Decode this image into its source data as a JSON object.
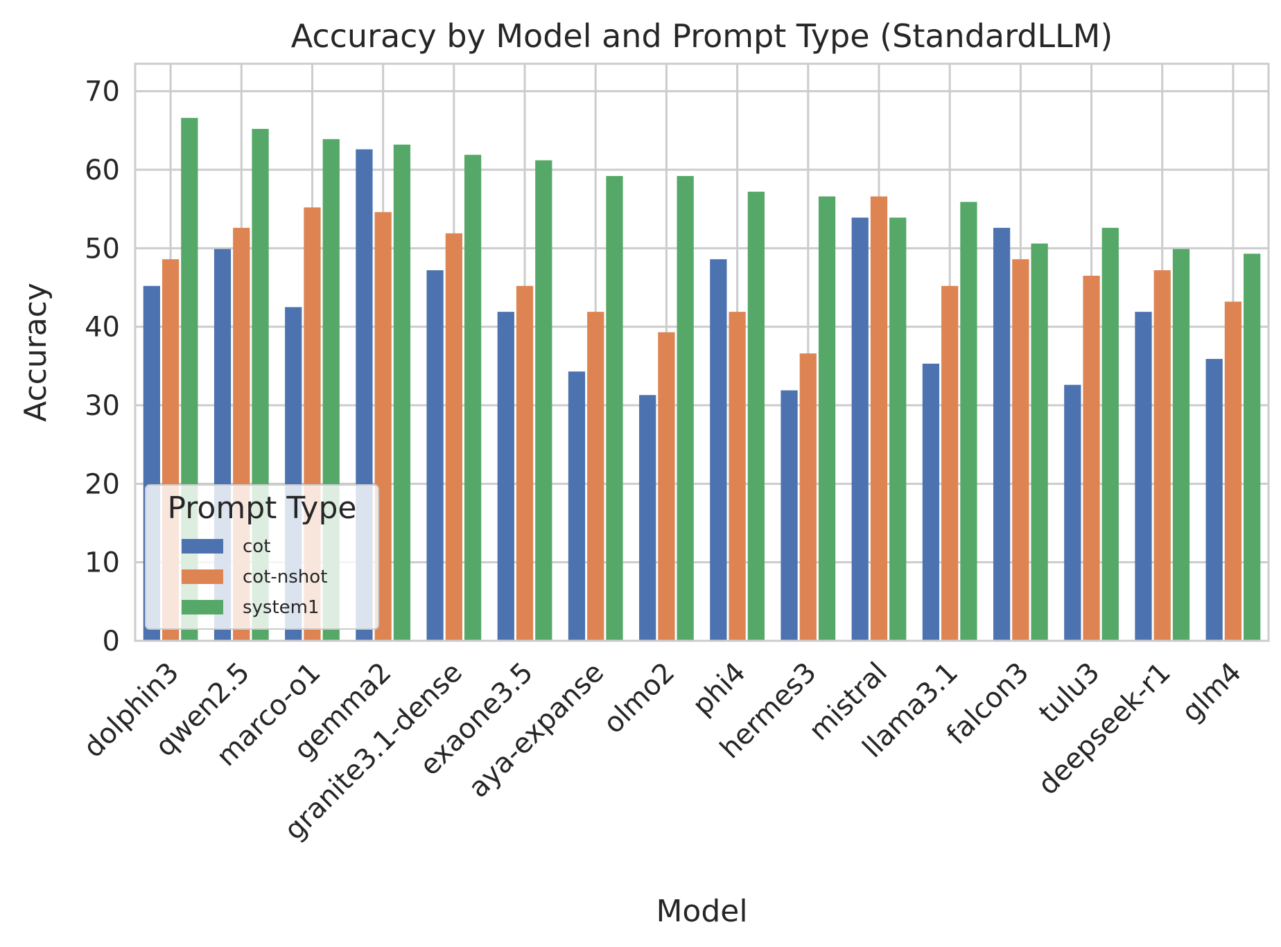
{
  "chart_data": {
    "type": "bar",
    "title": "Accuracy by Model and Prompt Type (StandardLLM)",
    "xlabel": "Model",
    "ylabel": "Accuracy",
    "ylim": [
      0,
      73.5
    ],
    "yticks": [
      0,
      10,
      20,
      30,
      40,
      50,
      60,
      70
    ],
    "grid": true,
    "legend": {
      "title": "Prompt Type",
      "placement": "lower-left"
    },
    "categories": [
      "dolphin3",
      "qwen2.5",
      "marco-o1",
      "gemma2",
      "granite3.1-dense",
      "exaone3.5",
      "aya-expanse",
      "olmo2",
      "phi4",
      "hermes3",
      "mistral",
      "llama3.1",
      "falcon3",
      "tulu3",
      "deepseek-r1",
      "glm4"
    ],
    "series": [
      {
        "name": "cot",
        "color": "#4c72b0",
        "values": [
          45.2,
          49.9,
          42.5,
          62.6,
          47.2,
          41.9,
          34.3,
          31.3,
          48.6,
          31.9,
          53.9,
          35.3,
          52.6,
          32.6,
          41.9,
          35.9
        ]
      },
      {
        "name": "cot-nshot",
        "color": "#dd8452",
        "values": [
          48.6,
          52.6,
          55.2,
          54.6,
          51.9,
          45.2,
          41.9,
          39.3,
          41.9,
          36.6,
          56.6,
          45.2,
          48.6,
          46.5,
          47.2,
          43.2
        ]
      },
      {
        "name": "system1",
        "color": "#55a868",
        "values": [
          66.6,
          65.2,
          63.9,
          63.2,
          61.9,
          61.2,
          59.2,
          59.2,
          57.2,
          56.6,
          53.9,
          55.9,
          50.6,
          52.6,
          49.9,
          49.3
        ]
      }
    ]
  }
}
